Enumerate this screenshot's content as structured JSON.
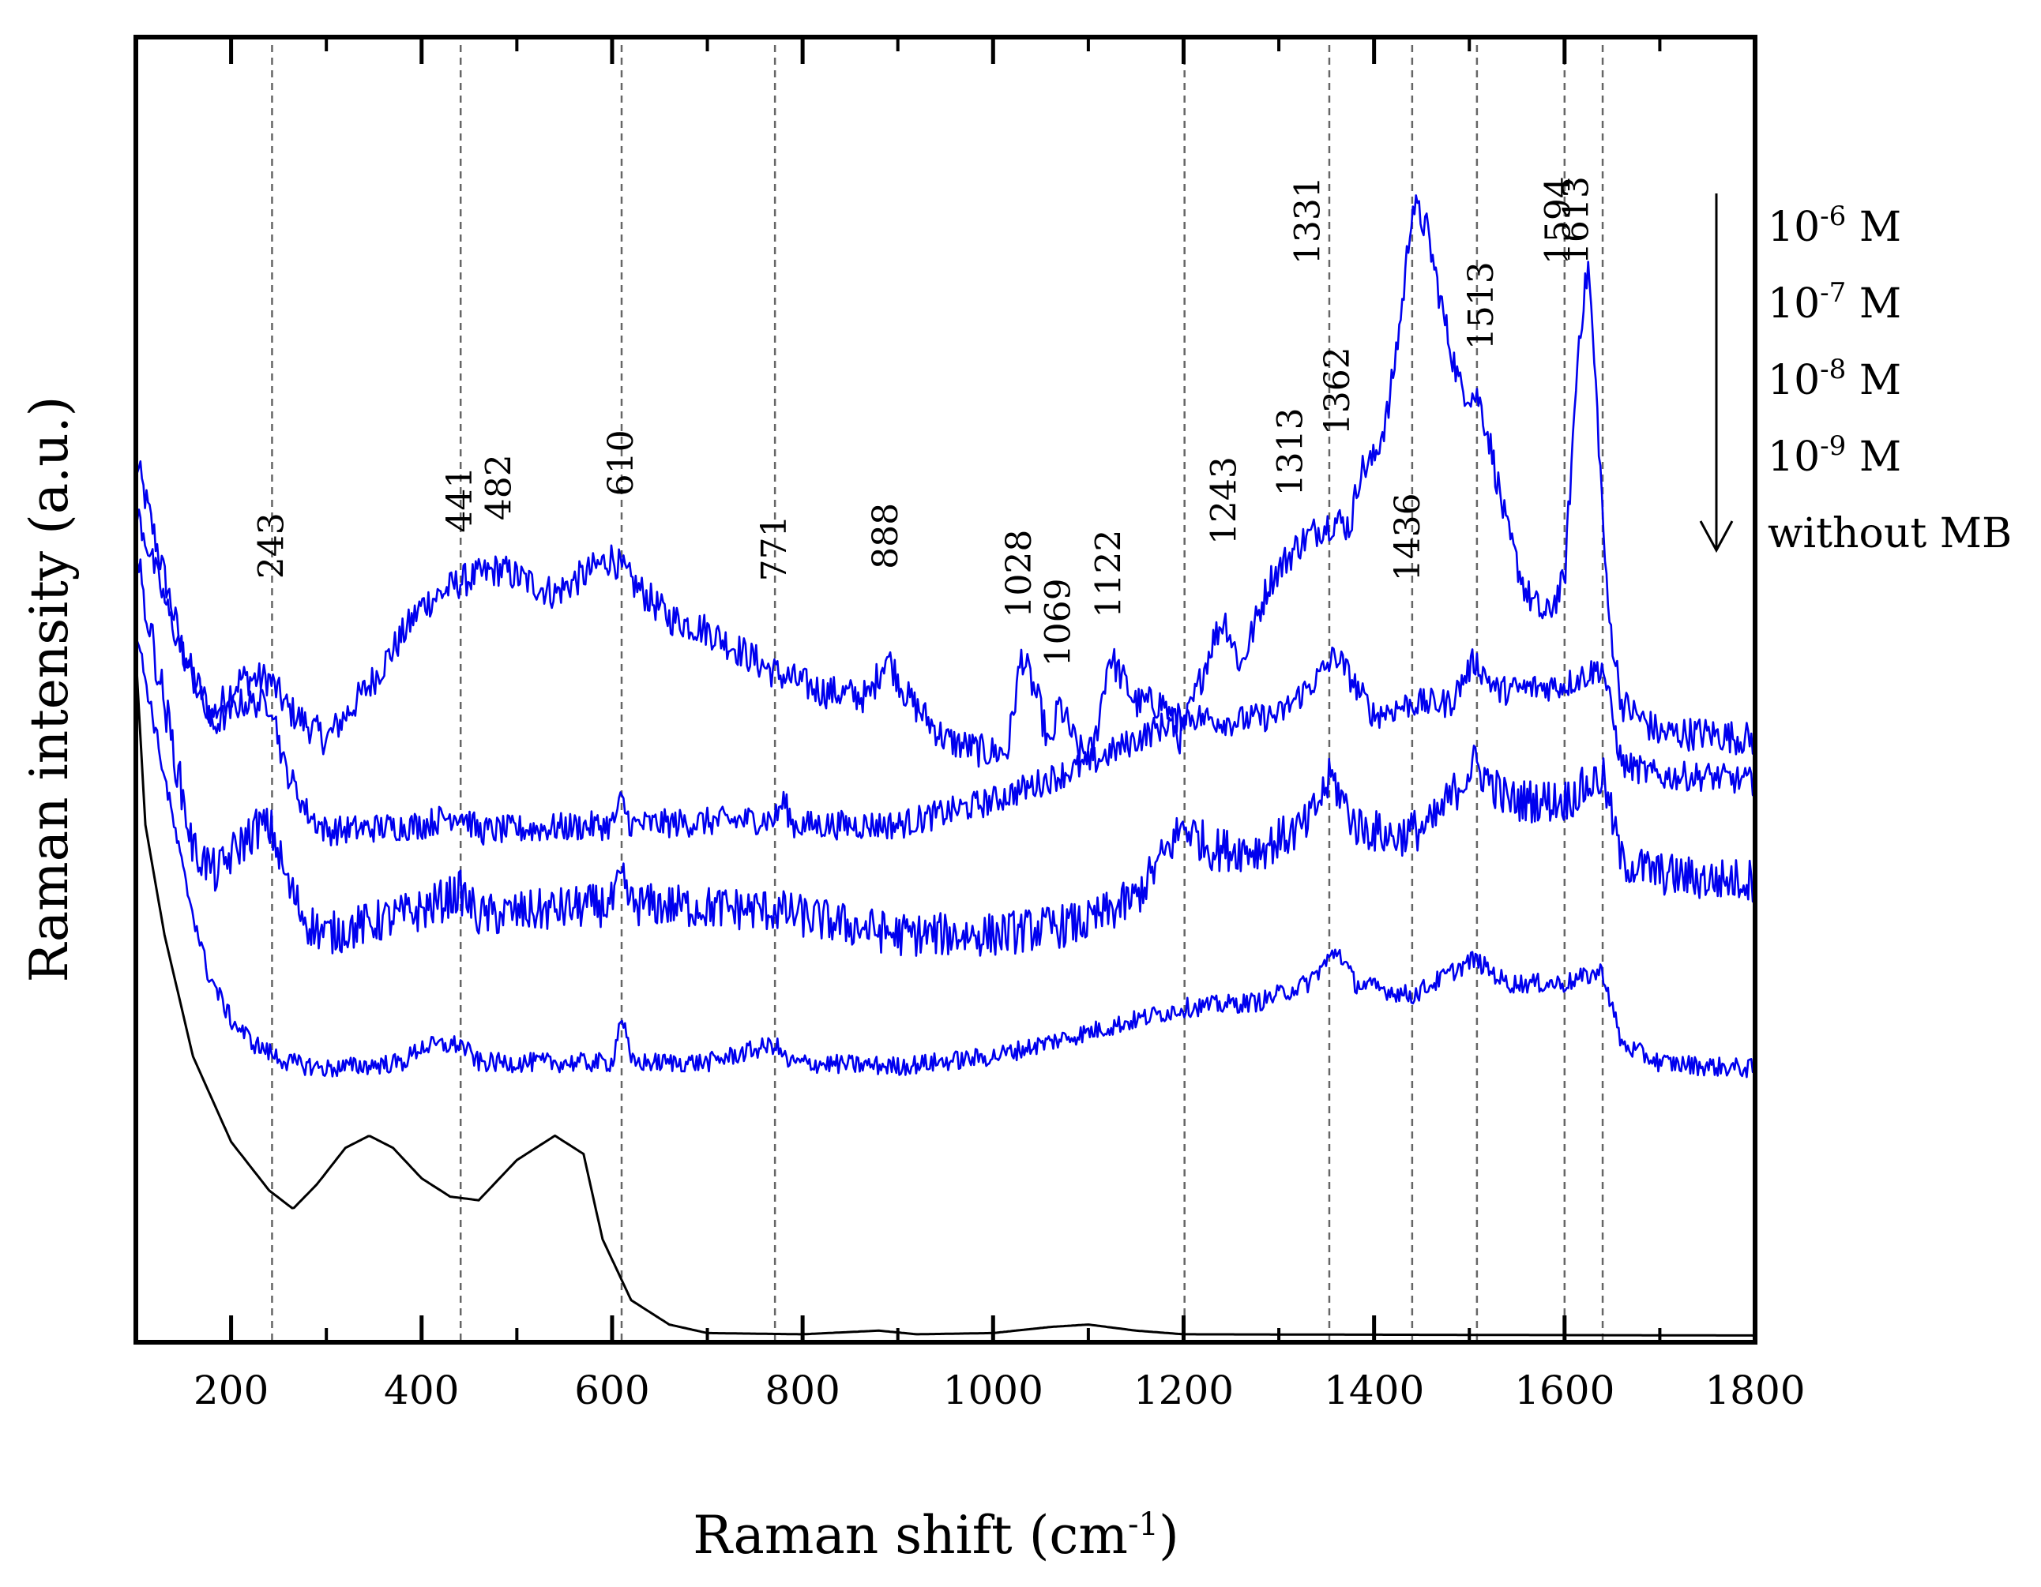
{
  "chart_data": {
    "type": "line",
    "xlabel": "Raman shift (cm",
    "xlabel_sup": "-1",
    "xlabel_end": ")",
    "ylabel": "Raman intensity (a.u.)",
    "xlim": [
      100,
      1800
    ],
    "ylim": [
      0,
      1000
    ],
    "y_ticks_shown": false,
    "x_ticks": [
      200,
      400,
      600,
      800,
      1000,
      1200,
      1400,
      1600,
      1800
    ],
    "x_tick_labels": [
      "200",
      "400",
      "600",
      "800",
      "1000",
      "1200",
      "1400",
      "1600",
      "1800"
    ],
    "minor_x_ticks": [
      300,
      500,
      700,
      900,
      1100,
      1300,
      1500,
      1700
    ],
    "peak_lines": [
      243,
      441,
      610,
      771,
      1201,
      1353,
      1440,
      1508,
      1600,
      1640
    ],
    "peak_labels": [
      {
        "text": "243",
        "x": 243,
        "y": 622
      },
      {
        "text": "441",
        "x": 441,
        "y": 660
      },
      {
        "text": "482",
        "x": 482,
        "y": 670
      },
      {
        "text": "610",
        "x": 610,
        "y": 690
      },
      {
        "text": "771",
        "x": 771,
        "y": 620
      },
      {
        "text": "888",
        "x": 888,
        "y": 630
      },
      {
        "text": "1028",
        "x": 1028,
        "y": 590
      },
      {
        "text": "1069",
        "x": 1069,
        "y": 550
      },
      {
        "text": "1122",
        "x": 1122,
        "y": 590
      },
      {
        "text": "1243",
        "x": 1243,
        "y": 650
      },
      {
        "text": "1313",
        "x": 1313,
        "y": 690
      },
      {
        "text": "1331",
        "x": 1331,
        "y": 880
      },
      {
        "text": "1362",
        "x": 1362,
        "y": 740
      },
      {
        "text": "1436",
        "x": 1436,
        "y": 620
      },
      {
        "text": "1513",
        "x": 1513,
        "y": 810
      },
      {
        "text": "1594",
        "x": 1594,
        "y": 880
      },
      {
        "text": "1613",
        "x": 1613,
        "y": 880
      }
    ],
    "legend": {
      "position": "right",
      "arrow": "down",
      "entries": [
        {
          "base": "10",
          "sup": "-6",
          "suffix": " M"
        },
        {
          "base": "10",
          "sup": "-7",
          "suffix": " M"
        },
        {
          "base": "10",
          "sup": "-8",
          "suffix": " M"
        },
        {
          "base": "10",
          "sup": "-9",
          "suffix": " M"
        },
        {
          "base": "without MB",
          "sup": "",
          "suffix": ""
        }
      ]
    },
    "series": [
      {
        "name": "10^-6 M",
        "color": "#0000ee",
        "baseline": [
          [
            100,
            720
          ],
          [
            150,
            560
          ],
          [
            180,
            510
          ],
          [
            210,
            540
          ],
          [
            240,
            540
          ],
          [
            260,
            515
          ],
          [
            300,
            490
          ],
          [
            350,
            540
          ],
          [
            400,
            600
          ],
          [
            441,
            620
          ],
          [
            482,
            630
          ],
          [
            540,
            610
          ],
          [
            600,
            640
          ],
          [
            620,
            620
          ],
          [
            660,
            590
          ],
          [
            700,
            580
          ],
          [
            771,
            545
          ],
          [
            820,
            530
          ],
          [
            870,
            525
          ],
          [
            888,
            560
          ],
          [
            910,
            525
          ],
          [
            950,
            490
          ],
          [
            990,
            480
          ],
          [
            1015,
            480
          ],
          [
            1030,
            560
          ],
          [
            1048,
            520
          ],
          [
            1060,
            480
          ],
          [
            1069,
            520
          ],
          [
            1090,
            480
          ],
          [
            1105,
            480
          ],
          [
            1122,
            560
          ],
          [
            1150,
            520
          ],
          [
            1180,
            520
          ],
          [
            1195,
            490
          ],
          [
            1210,
            520
          ],
          [
            1230,
            570
          ],
          [
            1243,
            590
          ],
          [
            1260,
            550
          ],
          [
            1290,
            620
          ],
          [
            1320,
            650
          ],
          [
            1345,
            665
          ],
          [
            1360,
            670
          ],
          [
            1375,
            665
          ],
          [
            1385,
            710
          ],
          [
            1400,
            720
          ],
          [
            1415,
            760
          ],
          [
            1430,
            850
          ],
          [
            1440,
            930
          ],
          [
            1455,
            910
          ],
          [
            1475,
            830
          ],
          [
            1490,
            780
          ],
          [
            1510,
            770
          ],
          [
            1520,
            740
          ],
          [
            1540,
            660
          ],
          [
            1560,
            610
          ],
          [
            1580,
            590
          ],
          [
            1600,
            620
          ],
          [
            1615,
            820
          ],
          [
            1625,
            880
          ],
          [
            1635,
            750
          ],
          [
            1645,
            600
          ],
          [
            1660,
            520
          ],
          [
            1700,
            495
          ],
          [
            1750,
            495
          ],
          [
            1800,
            490
          ]
        ],
        "noise": 14
      },
      {
        "name": "10^-7 M",
        "color": "#0000ee",
        "baseline": [
          [
            100,
            680
          ],
          [
            140,
            580
          ],
          [
            180,
            500
          ],
          [
            210,
            520
          ],
          [
            243,
            520
          ],
          [
            255,
            470
          ],
          [
            280,
            430
          ],
          [
            300,
            415
          ],
          [
            400,
            420
          ],
          [
            441,
            430
          ],
          [
            460,
            415
          ],
          [
            600,
            420
          ],
          [
            610,
            440
          ],
          [
            620,
            420
          ],
          [
            771,
            425
          ],
          [
            780,
            440
          ],
          [
            790,
            420
          ],
          [
            900,
            420
          ],
          [
            1000,
            440
          ],
          [
            1100,
            470
          ],
          [
            1150,
            490
          ],
          [
            1200,
            510
          ],
          [
            1250,
            505
          ],
          [
            1300,
            510
          ],
          [
            1340,
            540
          ],
          [
            1360,
            560
          ],
          [
            1380,
            535
          ],
          [
            1400,
            510
          ],
          [
            1440,
            520
          ],
          [
            1480,
            520
          ],
          [
            1505,
            555
          ],
          [
            1530,
            530
          ],
          [
            1600,
            535
          ],
          [
            1640,
            550
          ],
          [
            1660,
            470
          ],
          [
            1700,
            460
          ],
          [
            1750,
            460
          ],
          [
            1800,
            455
          ]
        ],
        "noise": 12
      },
      {
        "name": "10^-8 M",
        "color": "#0000ee",
        "baseline": [
          [
            100,
            640
          ],
          [
            130,
            520
          ],
          [
            160,
            400
          ],
          [
            185,
            380
          ],
          [
            205,
            400
          ],
          [
            230,
            420
          ],
          [
            243,
            415
          ],
          [
            260,
            370
          ],
          [
            280,
            340
          ],
          [
            300,
            330
          ],
          [
            400,
            350
          ],
          [
            441,
            365
          ],
          [
            460,
            345
          ],
          [
            600,
            355
          ],
          [
            610,
            375
          ],
          [
            620,
            355
          ],
          [
            771,
            350
          ],
          [
            800,
            345
          ],
          [
            900,
            330
          ],
          [
            1000,
            330
          ],
          [
            1100,
            340
          ],
          [
            1150,
            360
          ],
          [
            1200,
            420
          ],
          [
            1230,
            400
          ],
          [
            1280,
            400
          ],
          [
            1330,
            420
          ],
          [
            1355,
            460
          ],
          [
            1380,
            420
          ],
          [
            1420,
            410
          ],
          [
            1460,
            420
          ],
          [
            1505,
            470
          ],
          [
            1540,
            440
          ],
          [
            1600,
            440
          ],
          [
            1640,
            460
          ],
          [
            1660,
            390
          ],
          [
            1700,
            380
          ],
          [
            1750,
            375
          ],
          [
            1800,
            375
          ]
        ],
        "noise": 18
      },
      {
        "name": "10^-9 M",
        "color": "#0000ee",
        "baseline": [
          [
            100,
            580
          ],
          [
            125,
            480
          ],
          [
            150,
            380
          ],
          [
            175,
            300
          ],
          [
            200,
            260
          ],
          [
            225,
            240
          ],
          [
            243,
            232
          ],
          [
            260,
            225
          ],
          [
            300,
            220
          ],
          [
            380,
            225
          ],
          [
            400,
            238
          ],
          [
            441,
            240
          ],
          [
            460,
            225
          ],
          [
            600,
            225
          ],
          [
            610,
            265
          ],
          [
            620,
            225
          ],
          [
            700,
            225
          ],
          [
            771,
            240
          ],
          [
            785,
            225
          ],
          [
            900,
            222
          ],
          [
            1000,
            230
          ],
          [
            1040,
            238
          ],
          [
            1100,
            250
          ],
          [
            1200,
            270
          ],
          [
            1280,
            275
          ],
          [
            1330,
            290
          ],
          [
            1362,
            318
          ],
          [
            1380,
            290
          ],
          [
            1440,
            280
          ],
          [
            1505,
            310
          ],
          [
            1540,
            290
          ],
          [
            1600,
            290
          ],
          [
            1640,
            300
          ],
          [
            1660,
            240
          ],
          [
            1700,
            225
          ],
          [
            1750,
            222
          ],
          [
            1800,
            220
          ]
        ],
        "noise": 8
      },
      {
        "name": "without MB",
        "color": "#000000",
        "baseline": [
          [
            100,
            560
          ],
          [
            110,
            420
          ],
          [
            130,
            330
          ],
          [
            160,
            230
          ],
          [
            200,
            160
          ],
          [
            240,
            120
          ],
          [
            265,
            105
          ],
          [
            290,
            125
          ],
          [
            320,
            155
          ],
          [
            345,
            165
          ],
          [
            370,
            155
          ],
          [
            400,
            130
          ],
          [
            430,
            115
          ],
          [
            460,
            112
          ],
          [
            500,
            145
          ],
          [
            540,
            165
          ],
          [
            570,
            150
          ],
          [
            590,
            80
          ],
          [
            620,
            30
          ],
          [
            660,
            10
          ],
          [
            700,
            3
          ],
          [
            800,
            2
          ],
          [
            880,
            5
          ],
          [
            920,
            2
          ],
          [
            1000,
            3
          ],
          [
            1060,
            8
          ],
          [
            1100,
            10
          ],
          [
            1150,
            5
          ],
          [
            1200,
            2
          ],
          [
            1800,
            1
          ]
        ],
        "noise": 0
      }
    ]
  }
}
